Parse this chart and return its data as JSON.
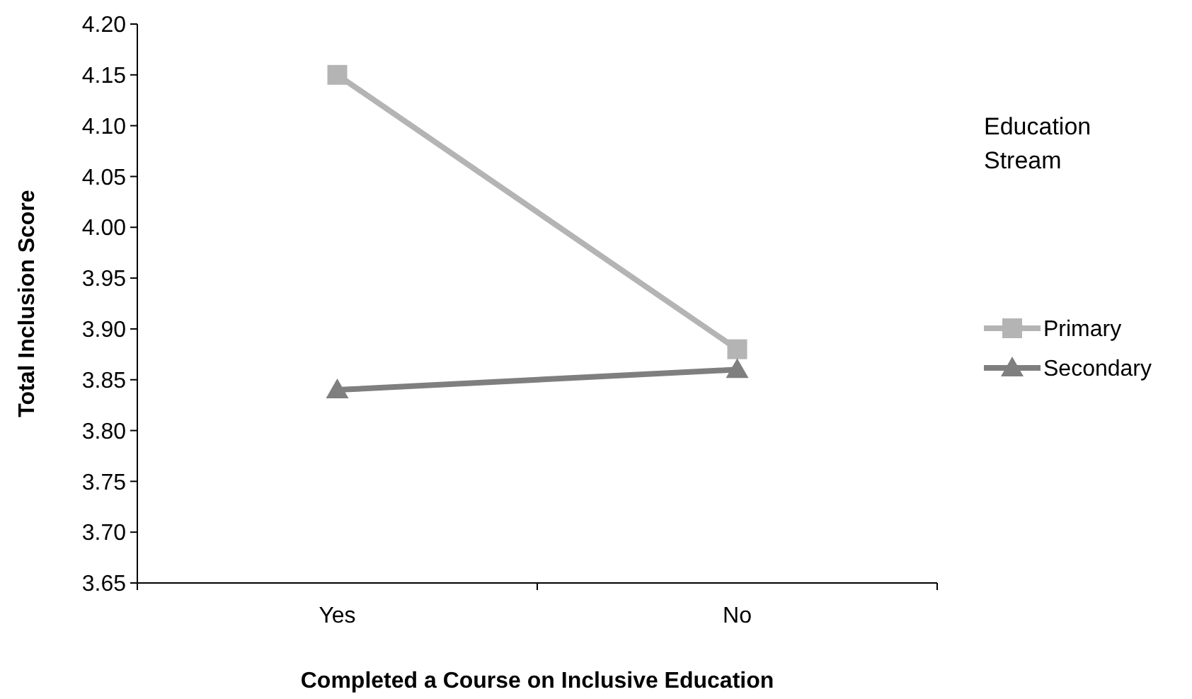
{
  "chart_data": {
    "type": "line",
    "xlabel": "Completed a Course on Inclusive Education",
    "ylabel": "Total Inclusion Score",
    "legend_title": "Education Stream",
    "legend": "right",
    "grid": false,
    "categories": [
      "Yes",
      "No"
    ],
    "ylim": [
      3.65,
      4.2
    ],
    "yticks": [
      {
        "value": 3.65,
        "label": "3.65"
      },
      {
        "value": 3.7,
        "label": "3.70"
      },
      {
        "value": 3.75,
        "label": "3.75"
      },
      {
        "value": 3.8,
        "label": "3.80"
      },
      {
        "value": 3.85,
        "label": "3.85"
      },
      {
        "value": 3.9,
        "label": "3.90"
      },
      {
        "value": 3.95,
        "label": "3.95"
      },
      {
        "value": 4.0,
        "label": "4.00"
      },
      {
        "value": 4.05,
        "label": "4.05"
      },
      {
        "value": 4.1,
        "label": "4.10"
      },
      {
        "value": 4.15,
        "label": "4.15"
      },
      {
        "value": 4.2,
        "label": "4.20"
      }
    ],
    "series": [
      {
        "name": "Primary",
        "color": "#b4b4b4",
        "marker": "square",
        "values": [
          4.15,
          3.88
        ]
      },
      {
        "name": "Secondary",
        "color": "#7f7f7f",
        "marker": "triangle",
        "values": [
          3.84,
          3.86
        ]
      }
    ]
  }
}
